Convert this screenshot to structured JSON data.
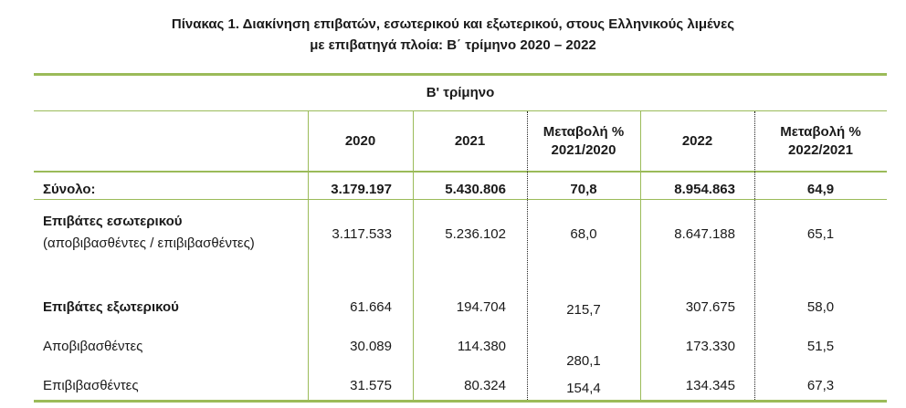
{
  "title": {
    "line1": "Πίνακας 1. Διακίνηση επιβατών, εσωτερικού και εξωτερικού, στους Ελληνικούς λιμένες",
    "line2": "με επιβατηγά πλοία: Β΄ τρίμηνο 2020 – 2022"
  },
  "table": {
    "period_header": "Β' τρίμηνο",
    "columns": {
      "y2020": "2020",
      "y2021": "2021",
      "chg1_line1": "Μεταβολή %",
      "chg1_line2": "2021/2020",
      "y2022": "2022",
      "chg2_line1": "Μεταβολή %",
      "chg2_line2": "2022/2021"
    },
    "rows": {
      "total": {
        "label": "Σύνολο:",
        "y2020": "3.179.197",
        "y2021": "5.430.806",
        "chg1": "70,8",
        "y2022": "8.954.863",
        "chg2": "64,9"
      },
      "domestic": {
        "label": "Επιβάτες εσωτερικού",
        "sublabel": "(αποβιβασθέντες / επιβιβασθέντες)",
        "y2020": "3.117.533",
        "y2021": "5.236.102",
        "chg1": "68,0",
        "y2022": "8.647.188",
        "chg2": "65,1"
      },
      "international": {
        "label": "Επιβάτες εξωτερικού",
        "y2020": "61.664",
        "y2021": "194.704",
        "chg1": "215,7",
        "y2022": "307.675",
        "chg2": "58,0"
      },
      "disembarked": {
        "label": "Αποβιβασθέντες",
        "y2020": "30.089",
        "y2021": "114.380",
        "chg1": "280,1",
        "y2022": "173.330",
        "chg2": "51,5"
      },
      "embarked": {
        "label": "Επιβιβασθέντες",
        "y2020": "31.575",
        "y2021": "80.324",
        "chg1": "154,4",
        "y2022": "134.345",
        "chg2": "67,3"
      }
    },
    "rule_color": "#9bbb59"
  }
}
